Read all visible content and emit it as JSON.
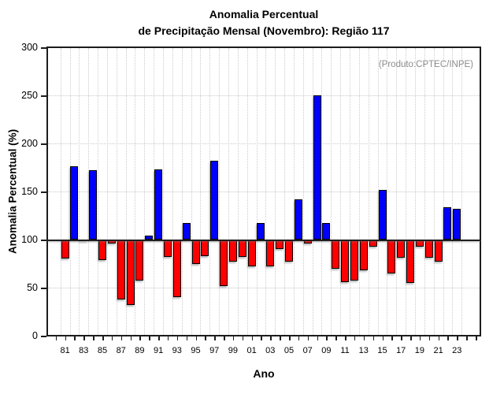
{
  "title": {
    "line1": "Anomalia Percentual",
    "line2": "de Precipitação Mensal (Novembro): Região 117"
  },
  "annotation": "(Produto:CPTEC/INPE)",
  "chart_data": {
    "type": "bar",
    "title": "Anomalia Percentual de Precipitação Mensal (Novembro): Região 117",
    "xlabel": "Ano",
    "ylabel": "Anomalia Percentual (%)",
    "ylim": [
      0,
      300
    ],
    "yticks": [
      0,
      50,
      100,
      150,
      200,
      250,
      300
    ],
    "ytick_labels": [
      "0",
      "50",
      "100",
      "150",
      "200",
      "250",
      "300"
    ],
    "baseline": 100,
    "grid": "dotted gray; horizontal every 50, vertical between year ticks",
    "legend_position": "none",
    "colors": {
      "above_baseline": "#0000ff",
      "below_baseline": "#ff0000",
      "bar_outline": "#000000",
      "baseline_line": "#1f1f1f",
      "annotation_text": "#8c8c8c"
    },
    "x_tick_labels": [
      "81",
      "83",
      "85",
      "87",
      "89",
      "91",
      "93",
      "95",
      "97",
      "99",
      "01",
      "03",
      "05",
      "07",
      "09",
      "11",
      "13",
      "15",
      "17",
      "19",
      "21",
      "23"
    ],
    "years": [
      1981,
      1982,
      1983,
      1984,
      1985,
      1986,
      1987,
      1988,
      1989,
      1990,
      1991,
      1992,
      1993,
      1994,
      1995,
      1996,
      1997,
      1998,
      1999,
      2000,
      2001,
      2002,
      2003,
      2004,
      2005,
      2006,
      2007,
      2008,
      2009,
      2010,
      2011,
      2012,
      2013,
      2014,
      2015,
      2016,
      2017,
      2018,
      2019,
      2020,
      2021,
      2022,
      2023
    ],
    "values": [
      80,
      176,
      100,
      172,
      79,
      96,
      38,
      32,
      57,
      104,
      173,
      82,
      40,
      117,
      75,
      83,
      182,
      52,
      77,
      82,
      72,
      117,
      72,
      90,
      77,
      142,
      96,
      250,
      117,
      70,
      56,
      57,
      68,
      93,
      152,
      65,
      81,
      55,
      93,
      81,
      77,
      134,
      132
    ]
  }
}
